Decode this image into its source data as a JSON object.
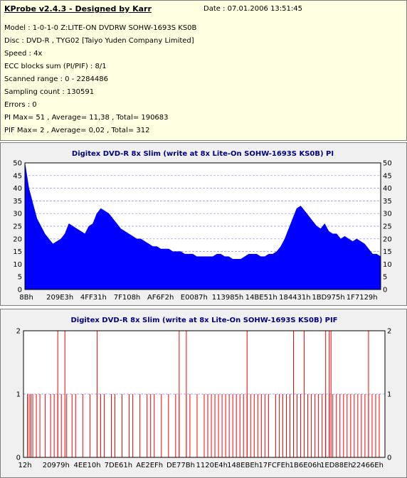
{
  "header": {
    "app_title": "KProbe v2.4.3 - Designed by Karr",
    "date": "Date : 07.01.2006 13:51:45",
    "lines": [
      "Model : 1-0-1-0 Z:LITE-ON DVDRW SOHW-1693S KS0B",
      "Disc : DVD-R , TYG02 [Taiyo Yuden Company Limited]",
      "Speed : 4x",
      "ECC blocks sum (PI/PIF) : 8/1",
      "Scanned range : 0 - 2284486",
      "Sampling count : 130591",
      "Errors : 0",
      "PI Max= 51 , Average= 11,38 , Total= 190683",
      "PIF Max= 2 , Average= 0,02 , Total= 312"
    ]
  },
  "colors": {
    "pi_fill": "#0000ff",
    "pif_line": "#ff0000",
    "title_text": "#000080",
    "plot_bg": "#ffffff",
    "grid": "#8c8cff"
  },
  "chart_data": [
    {
      "type": "area",
      "title": "Digitex DVD-R 8x Slim (write at 8x Lite-On SOHW-1693S KS0B) PI",
      "x_tick_labels": [
        "8Bh",
        "209E3h",
        "4FF31h",
        "7F108h",
        "AF6F2h",
        "E0087h",
        "113985h",
        "14BE51h",
        "184431h",
        "1BD975h",
        "1F7129h"
      ],
      "ylim": [
        0,
        50
      ],
      "y_ticks": [
        0,
        5,
        10,
        15,
        20,
        25,
        30,
        35,
        40,
        45,
        50
      ],
      "grid": true,
      "series": [
        {
          "values": [
            50,
            40,
            34,
            28,
            25,
            22,
            20,
            18,
            19,
            20,
            22,
            26,
            25,
            24,
            23,
            22,
            25,
            26,
            30,
            32,
            31,
            30,
            28,
            26,
            24,
            23,
            22,
            21,
            20,
            20,
            19,
            18,
            17,
            17,
            16,
            16,
            16,
            15,
            15,
            15,
            14,
            14,
            14,
            13,
            13,
            13,
            13,
            13,
            14,
            14,
            13,
            13,
            12,
            12,
            12,
            13,
            14,
            14,
            14,
            13,
            13,
            14,
            14,
            15,
            17,
            20,
            24,
            28,
            32,
            33,
            31,
            29,
            27,
            25,
            24,
            26,
            23,
            22,
            22,
            20,
            21,
            20,
            19,
            20,
            19,
            18,
            16,
            14,
            14,
            13
          ]
        }
      ]
    },
    {
      "type": "bar",
      "title": "Digitex DVD-R 8x Slim (write at 8x Lite-On SOHW-1693S KS0B) PIF",
      "x_tick_labels": [
        "12h",
        "20979h",
        "4EE10h",
        "7DE61h",
        "AE2EFh",
        "DE77Bh",
        "1120E4h",
        "148EBEh",
        "17FCFEh",
        "1B6E06h",
        "1ED88Eh",
        "22466Eh"
      ],
      "ylim": [
        0,
        2
      ],
      "y_ticks": [
        0,
        1,
        2
      ],
      "grid": true,
      "ones_x": [
        0.5,
        1,
        1.5,
        2,
        3,
        4,
        5.5,
        7,
        8,
        9,
        10,
        11.5,
        13,
        14,
        16,
        18,
        20,
        21,
        22,
        24,
        25,
        27,
        29,
        30,
        32,
        34,
        35,
        36,
        38,
        40,
        42,
        43,
        45,
        46,
        48,
        50,
        51,
        52,
        53,
        54,
        55,
        56,
        57,
        58,
        59,
        60,
        61,
        62,
        63,
        64,
        65,
        66,
        67,
        68,
        70,
        71,
        72,
        73,
        74,
        75,
        76,
        77,
        79,
        80,
        81,
        82,
        83,
        84,
        85,
        86,
        87,
        88,
        89,
        90,
        91,
        92,
        93,
        94,
        95,
        96,
        97,
        98,
        99
      ],
      "twos_x": [
        9,
        11,
        20,
        43,
        45,
        62,
        75,
        78,
        84,
        85,
        85.5,
        96
      ]
    }
  ]
}
